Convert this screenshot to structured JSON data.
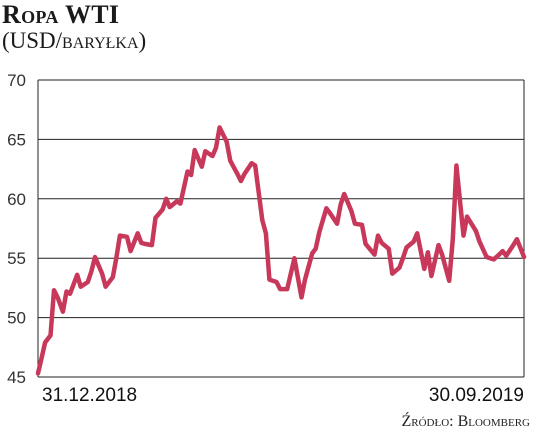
{
  "title": "Ropa WTI",
  "subtitle": "(USD/baryłka)",
  "source": "Źródło: Bloomberg",
  "colors": {
    "line": "#c8385a",
    "grid": "#222222",
    "text": "#1a1a1a"
  },
  "chart_data": {
    "type": "line",
    "title": "Ropa WTI",
    "ylabel": "(USD/baryłka)",
    "xlabel": "",
    "ylim": [
      45,
      70
    ],
    "yticks": [
      45,
      50,
      55,
      60,
      65,
      70
    ],
    "x_tick_labels": [
      "31.12.2018",
      "30.09.2019"
    ],
    "grid": true,
    "series": [
      {
        "x": [
          "2018-12-31",
          "2019-01-02",
          "2019-01-04",
          "2019-01-07",
          "2019-01-09",
          "2019-01-11",
          "2019-01-14",
          "2019-01-16",
          "2019-01-18",
          "2019-01-22",
          "2019-01-24",
          "2019-01-28",
          "2019-01-30",
          "2019-02-01",
          "2019-02-05",
          "2019-02-07",
          "2019-02-11",
          "2019-02-13",
          "2019-02-15",
          "2019-02-19",
          "2019-02-21",
          "2019-02-25",
          "2019-02-27",
          "2019-03-01",
          "2019-03-05",
          "2019-03-07",
          "2019-03-11",
          "2019-03-13",
          "2019-03-15",
          "2019-03-19",
          "2019-03-21",
          "2019-03-25",
          "2019-03-27",
          "2019-03-29",
          "2019-04-02",
          "2019-04-04",
          "2019-04-08",
          "2019-04-10",
          "2019-04-12",
          "2019-04-16",
          "2019-04-18",
          "2019-04-22",
          "2019-04-24",
          "2019-04-26",
          "2019-04-30",
          "2019-05-02",
          "2019-05-06",
          "2019-05-08",
          "2019-05-10",
          "2019-05-14",
          "2019-05-16",
          "2019-05-20",
          "2019-05-22",
          "2019-05-24",
          "2019-05-28",
          "2019-05-30",
          "2019-06-03",
          "2019-06-05",
          "2019-06-07",
          "2019-06-11",
          "2019-06-13",
          "2019-06-17",
          "2019-06-19",
          "2019-06-21",
          "2019-06-25",
          "2019-06-27",
          "2019-07-01",
          "2019-07-03",
          "2019-07-08",
          "2019-07-10",
          "2019-07-12",
          "2019-07-16",
          "2019-07-18",
          "2019-07-22",
          "2019-07-24",
          "2019-07-26",
          "2019-07-30",
          "2019-08-01",
          "2019-08-05",
          "2019-08-07",
          "2019-08-09",
          "2019-08-13",
          "2019-08-15",
          "2019-08-19",
          "2019-08-21",
          "2019-08-23",
          "2019-08-27",
          "2019-08-29",
          "2019-09-03",
          "2019-09-05",
          "2019-09-09",
          "2019-09-11",
          "2019-09-13",
          "2019-09-16",
          "2019-09-18",
          "2019-09-20",
          "2019-09-24",
          "2019-09-26",
          "2019-09-30"
        ],
        "y": [
          45.3,
          46.6,
          47.9,
          48.5,
          52.3,
          51.7,
          50.5,
          52.2,
          52.0,
          53.6,
          52.6,
          53.0,
          53.9,
          55.1,
          53.7,
          52.6,
          53.4,
          55.0,
          56.9,
          56.8,
          55.6,
          57.1,
          56.3,
          56.2,
          56.1,
          58.4,
          59.1,
          60.0,
          59.3,
          59.8,
          59.6,
          62.3,
          62.0,
          64.1,
          62.7,
          64.0,
          63.6,
          64.3,
          66.0,
          64.8,
          63.2,
          62.1,
          61.5,
          62.1,
          63.0,
          62.8,
          58.2,
          57.1,
          53.2,
          53.0,
          52.4,
          52.4,
          53.7,
          55.0,
          51.7,
          53.2,
          55.4,
          55.8,
          57.2,
          59.2,
          58.8,
          57.9,
          59.5,
          60.4,
          59.0,
          57.9,
          57.8,
          56.2,
          55.3,
          56.9,
          56.3,
          55.8,
          53.7,
          54.2,
          55.0,
          55.9,
          56.4,
          57.1,
          54.1,
          55.5,
          53.5,
          56.1,
          55.3,
          53.1,
          56.6,
          62.8,
          56.9,
          58.5,
          57.3,
          56.4,
          55.1,
          55.0,
          54.9,
          55.3,
          55.6,
          55.2,
          56.1,
          56.6,
          55.1
        ]
      }
    ]
  }
}
